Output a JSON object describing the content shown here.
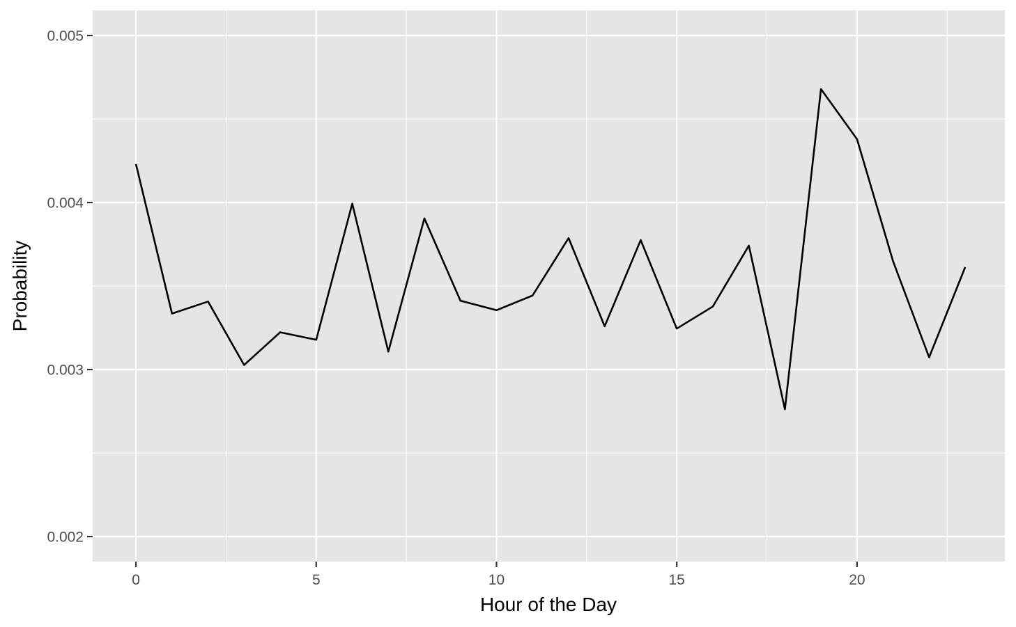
{
  "chart_data": {
    "type": "line",
    "title": "",
    "xlabel": "Hour of the Day",
    "ylabel": "Probability",
    "xlim": [
      -1.2,
      24.1
    ],
    "ylim": [
      0.00185,
      0.00515
    ],
    "x_ticks": [
      0,
      5,
      10,
      15,
      20
    ],
    "x_tick_labels": [
      "0",
      "5",
      "10",
      "15",
      "20"
    ],
    "x_minor_ticks": [
      2.5,
      7.5,
      12.5,
      17.5,
      22.5
    ],
    "y_ticks": [
      0.002,
      0.003,
      0.004,
      0.005
    ],
    "y_tick_labels": [
      "0.002",
      "0.003",
      "0.004",
      "0.005"
    ],
    "y_minor_ticks": [
      0.0025,
      0.0035,
      0.0045
    ],
    "grid": true,
    "line_color": "#000000",
    "panel_color": "#e5e5e5",
    "x": [
      0,
      1,
      2,
      3,
      4,
      5,
      6,
      7,
      8,
      9,
      10,
      11,
      12,
      13,
      14,
      15,
      16,
      17,
      18,
      19,
      20,
      21,
      22,
      23
    ],
    "y": [
      0.00423,
      0.003335,
      0.003407,
      0.003027,
      0.003223,
      0.003178,
      0.003993,
      0.003107,
      0.003905,
      0.003412,
      0.003355,
      0.003443,
      0.003787,
      0.003259,
      0.003775,
      0.003245,
      0.003377,
      0.003742,
      0.002762,
      0.004679,
      0.004379,
      0.003648,
      0.003073,
      0.003613
    ]
  }
}
